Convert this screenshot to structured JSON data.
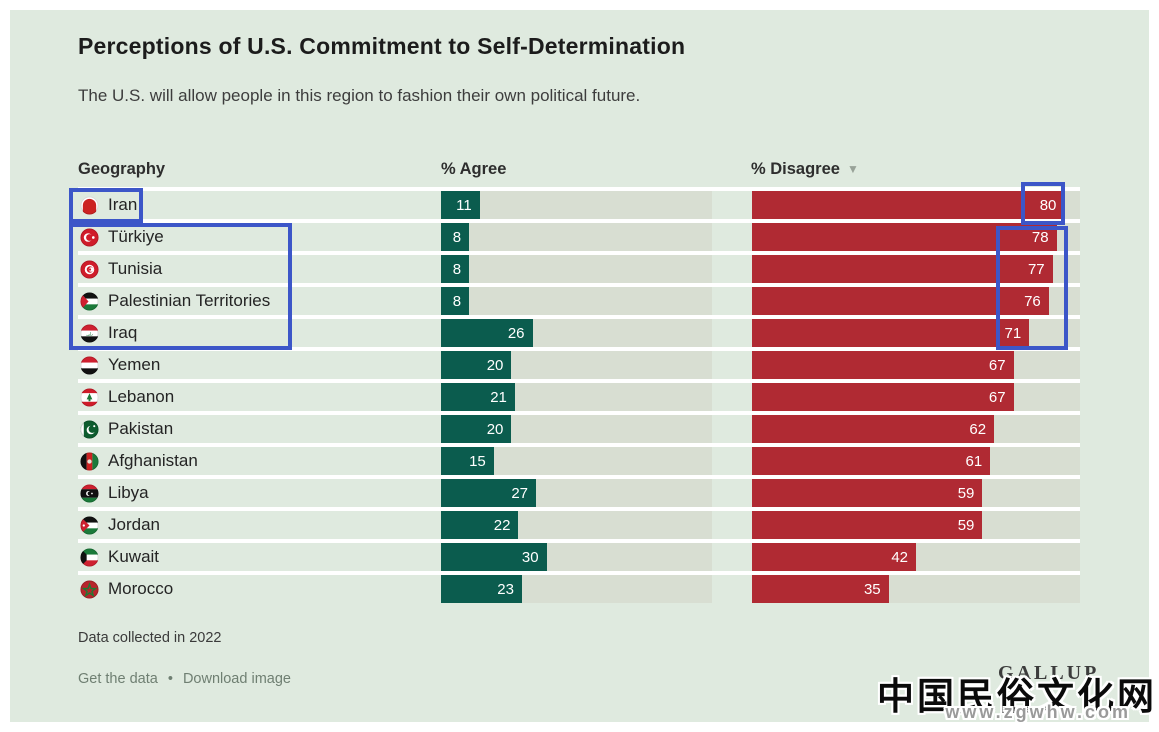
{
  "title": "Perceptions of U.S. Commitment to Self-Determination",
  "subtitle": "The U.S. will allow people in this region to fashion their own political future.",
  "columns": {
    "geography": "Geography",
    "agree": "% Agree",
    "disagree": "% Disagree",
    "sort_icon": "▼"
  },
  "chart_data": {
    "type": "bar",
    "title": "Perceptions of U.S. Commitment to Self-Determination",
    "subtitle": "The U.S. will allow people in this region to fashion their own political future.",
    "categories": [
      "Iran",
      "Türkiye",
      "Tunisia",
      "Palestinian Territories",
      "Iraq",
      "Yemen",
      "Lebanon",
      "Pakistan",
      "Afghanistan",
      "Libya",
      "Jordan",
      "Kuwait",
      "Morocco"
    ],
    "series": [
      {
        "name": "% Agree",
        "color": "#0b5c4e",
        "values": [
          11,
          8,
          8,
          8,
          26,
          20,
          21,
          20,
          15,
          27,
          22,
          30,
          23
        ]
      },
      {
        "name": "% Disagree",
        "color": "#b02a33",
        "values": [
          80,
          78,
          77,
          76,
          71,
          67,
          67,
          62,
          61,
          59,
          59,
          42,
          35
        ]
      }
    ],
    "sorted_by": "% Disagree, descending",
    "orientation": "horizontal",
    "track_color": "#d8ded2",
    "axis_max": {
      "agree": 77,
      "disagree": 84
    },
    "legend_position": "column headers",
    "grid": false
  },
  "rows": [
    {
      "country": "Iran",
      "flag": "iran",
      "agree": 11,
      "disagree": 80
    },
    {
      "country": "Türkiye",
      "flag": "turkiye",
      "agree": 8,
      "disagree": 78
    },
    {
      "country": "Tunisia",
      "flag": "tunisia",
      "agree": 8,
      "disagree": 77
    },
    {
      "country": "Palestinian Territories",
      "flag": "palestine",
      "agree": 8,
      "disagree": 76
    },
    {
      "country": "Iraq",
      "flag": "iraq",
      "agree": 26,
      "disagree": 71
    },
    {
      "country": "Yemen",
      "flag": "yemen",
      "agree": 20,
      "disagree": 67
    },
    {
      "country": "Lebanon",
      "flag": "lebanon",
      "agree": 21,
      "disagree": 67
    },
    {
      "country": "Pakistan",
      "flag": "pakistan",
      "agree": 20,
      "disagree": 62
    },
    {
      "country": "Afghanistan",
      "flag": "afghanistan",
      "agree": 15,
      "disagree": 61
    },
    {
      "country": "Libya",
      "flag": "libya",
      "agree": 27,
      "disagree": 59
    },
    {
      "country": "Jordan",
      "flag": "jordan",
      "agree": 22,
      "disagree": 59
    },
    {
      "country": "Kuwait",
      "flag": "kuwait",
      "agree": 30,
      "disagree": 42
    },
    {
      "country": "Morocco",
      "flag": "morocco",
      "agree": 23,
      "disagree": 35
    }
  ],
  "footer": {
    "note": "Data collected in 2022",
    "link_get_data": "Get the data",
    "link_separator": "•",
    "link_download": "Download image",
    "logo": "GALLUP"
  },
  "watermark": {
    "line1": "中国民俗文化网",
    "line2": "www.zgwhw.com"
  },
  "annotations": {
    "highlight_color": "#3c56c8",
    "boxes": [
      "iran-geography-label",
      "turkiye-tunisia-palestine-iraq-geography-labels",
      "iran-disagree-value-80",
      "disagree-values-78-77-76-71"
    ]
  },
  "colors": {
    "card_background": "#dfeadf",
    "page_background": "#ffffff",
    "agree_bar": "#0b5c4e",
    "disagree_bar": "#b02a33",
    "bar_track": "#d8ded2",
    "annotation_blue": "#3c56c8"
  }
}
